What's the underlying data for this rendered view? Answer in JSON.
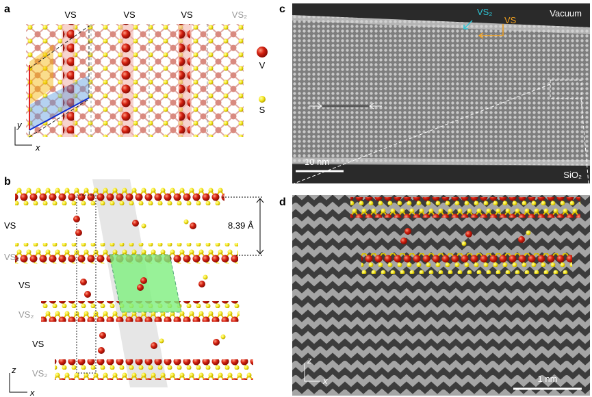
{
  "panel_a": {
    "label": "a",
    "column_labels": [
      "VS",
      "VS",
      "VS",
      "VS₂"
    ],
    "legend": [
      "V",
      "S"
    ],
    "axis_y": "y",
    "axis_x": "x"
  },
  "panel_b": {
    "label": "b",
    "layer_labels": [
      "VS",
      "VS₂",
      "VS",
      "VS₂",
      "VS",
      "VS₂"
    ],
    "spacing": "8.39 Å",
    "axis_z": "z",
    "axis_x": "x"
  },
  "panel_c": {
    "label": "c",
    "arrow_labels": [
      "VS₂",
      "VS"
    ],
    "region_labels": [
      "Vacuum",
      "SiO₂"
    ],
    "scale_bar": "10 nm"
  },
  "panel_d": {
    "label": "d",
    "axis_z": "z",
    "axis_x": "x",
    "scale_bar": "1 nm"
  }
}
